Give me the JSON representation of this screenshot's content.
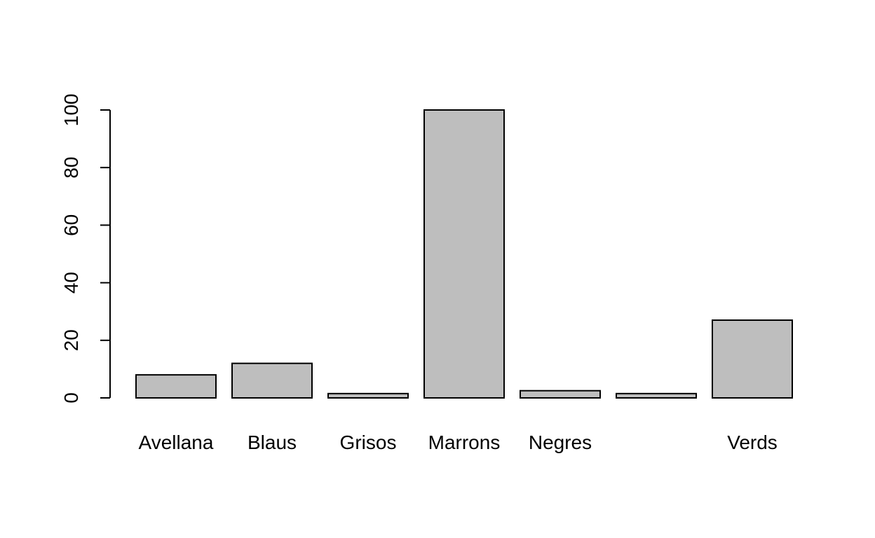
{
  "chart_data": {
    "type": "bar",
    "categories": [
      "Avellana",
      "Blaus",
      "Grisos",
      "Marrons",
      "Negres",
      "",
      "Verds"
    ],
    "values": [
      8,
      12,
      1.5,
      100,
      2.5,
      1.5,
      27
    ],
    "title": "",
    "xlabel": "",
    "ylabel": "",
    "ylim": [
      0,
      100
    ],
    "yticks": [
      "0",
      "20",
      "40",
      "60",
      "80",
      "100"
    ],
    "grid": false,
    "bar_color": "#bebebe",
    "bar_edge_color": "#000000"
  }
}
